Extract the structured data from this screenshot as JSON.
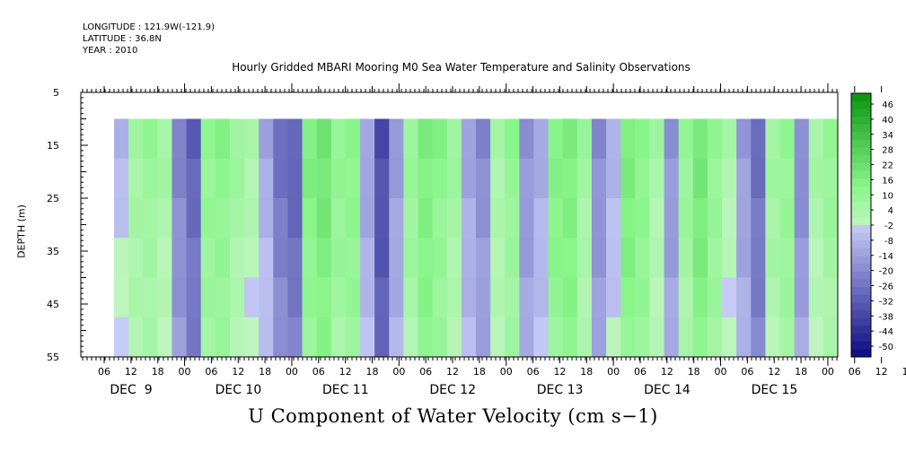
{
  "header": {
    "longitude": "LONGITUDE : 121.9W(-121.9)",
    "latitude": "LATITUDE : 36.8N",
    "year": "YEAR : 2010"
  },
  "chart_data": {
    "type": "heatmap",
    "title": "Hourly Gridded MBARI Mooring M0 Sea Water Temperature and Salinity Observations",
    "xlabel": "U Component of Water Velocity (cm s−1)",
    "ylabel": "DEPTH (m)",
    "y_ticks": [
      "5",
      "15",
      "25",
      "35",
      "45",
      "55"
    ],
    "ylim": [
      55,
      5
    ],
    "x_tick_hours": [
      "06",
      "12",
      "18",
      "00",
      "06",
      "12",
      "18",
      "00",
      "06",
      "12",
      "18",
      "00",
      "06",
      "12",
      "18",
      "00",
      "06",
      "12",
      "18",
      "00",
      "06",
      "12",
      "18",
      "00",
      "06",
      "12",
      "18",
      "00",
      "06",
      "12",
      "18",
      "00"
    ],
    "x_days": [
      "DEC  9",
      "DEC 10",
      "DEC 11",
      "DEC 12",
      "DEC 13",
      "DEC 14",
      "DEC 15"
    ],
    "data_depth_range": [
      10,
      55
    ],
    "colorbar": {
      "labels": [
        "46",
        "40",
        "34",
        "28",
        "22",
        "16",
        "10",
        "4",
        "-2",
        "-8",
        "-14",
        "-20",
        "-26",
        "-32",
        "-38",
        "-44",
        "-50"
      ],
      "range": [
        -50,
        50
      ]
    },
    "series": [
      {
        "values_by_time": [
          -2,
          6,
          8,
          4,
          -16,
          -24,
          10,
          12,
          6,
          2,
          -6,
          -20,
          -24,
          14,
          18,
          10,
          12,
          -8,
          -30,
          -10,
          8,
          16,
          12,
          6,
          -8,
          -14,
          4,
          10,
          -12,
          -6,
          14,
          16,
          6,
          -14,
          -4,
          16,
          12,
          4,
          -12,
          8,
          18,
          10,
          2,
          -10,
          -22,
          6,
          10,
          -14,
          4,
          8
        ]
      }
    ]
  }
}
